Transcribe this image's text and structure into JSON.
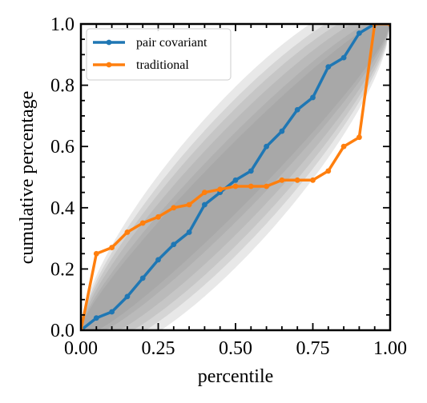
{
  "chart_data": {
    "type": "line",
    "xlabel": "percentile",
    "ylabel": "cumulative percentage",
    "xlim": [
      0,
      1
    ],
    "ylim": [
      0,
      1
    ],
    "x_ticks": [
      0.0,
      0.25,
      0.5,
      0.75,
      1.0
    ],
    "x_tick_labels": [
      "0.00",
      "0.25",
      "0.50",
      "0.75",
      "1.00"
    ],
    "y_ticks": [
      0.0,
      0.2,
      0.4,
      0.6,
      0.8,
      1.0
    ],
    "y_tick_labels": [
      "0.0",
      "0.2",
      "0.4",
      "0.6",
      "0.8",
      "1.0"
    ],
    "grid": false,
    "legend": {
      "placement": "top-left"
    },
    "confidence_band": {
      "color": "#8c8c8c",
      "levels": [
        0.01,
        0.025,
        0.05,
        0.1,
        0.2,
        0.3
      ],
      "n": 19
    },
    "series": [
      {
        "name": "pair covariant",
        "color": "#1f77b4",
        "x": [
          0.0,
          0.05,
          0.1,
          0.15,
          0.2,
          0.25,
          0.3,
          0.35,
          0.4,
          0.45,
          0.5,
          0.55,
          0.6,
          0.65,
          0.7,
          0.75,
          0.8,
          0.85,
          0.9,
          0.95,
          1.0
        ],
        "values": [
          0.0,
          0.04,
          0.06,
          0.11,
          0.17,
          0.23,
          0.28,
          0.32,
          0.41,
          0.45,
          0.49,
          0.52,
          0.6,
          0.65,
          0.72,
          0.76,
          0.86,
          0.89,
          0.97,
          1.0,
          1.0
        ]
      },
      {
        "name": "traditional",
        "color": "#ff7f0e",
        "x": [
          0.0,
          0.05,
          0.1,
          0.15,
          0.2,
          0.25,
          0.3,
          0.35,
          0.4,
          0.45,
          0.5,
          0.55,
          0.6,
          0.65,
          0.7,
          0.75,
          0.8,
          0.85,
          0.9,
          0.95,
          1.0
        ],
        "values": [
          0.0,
          0.25,
          0.27,
          0.32,
          0.35,
          0.37,
          0.4,
          0.41,
          0.45,
          0.46,
          0.47,
          0.47,
          0.47,
          0.49,
          0.49,
          0.49,
          0.52,
          0.6,
          0.63,
          1.0,
          1.0
        ]
      }
    ]
  }
}
